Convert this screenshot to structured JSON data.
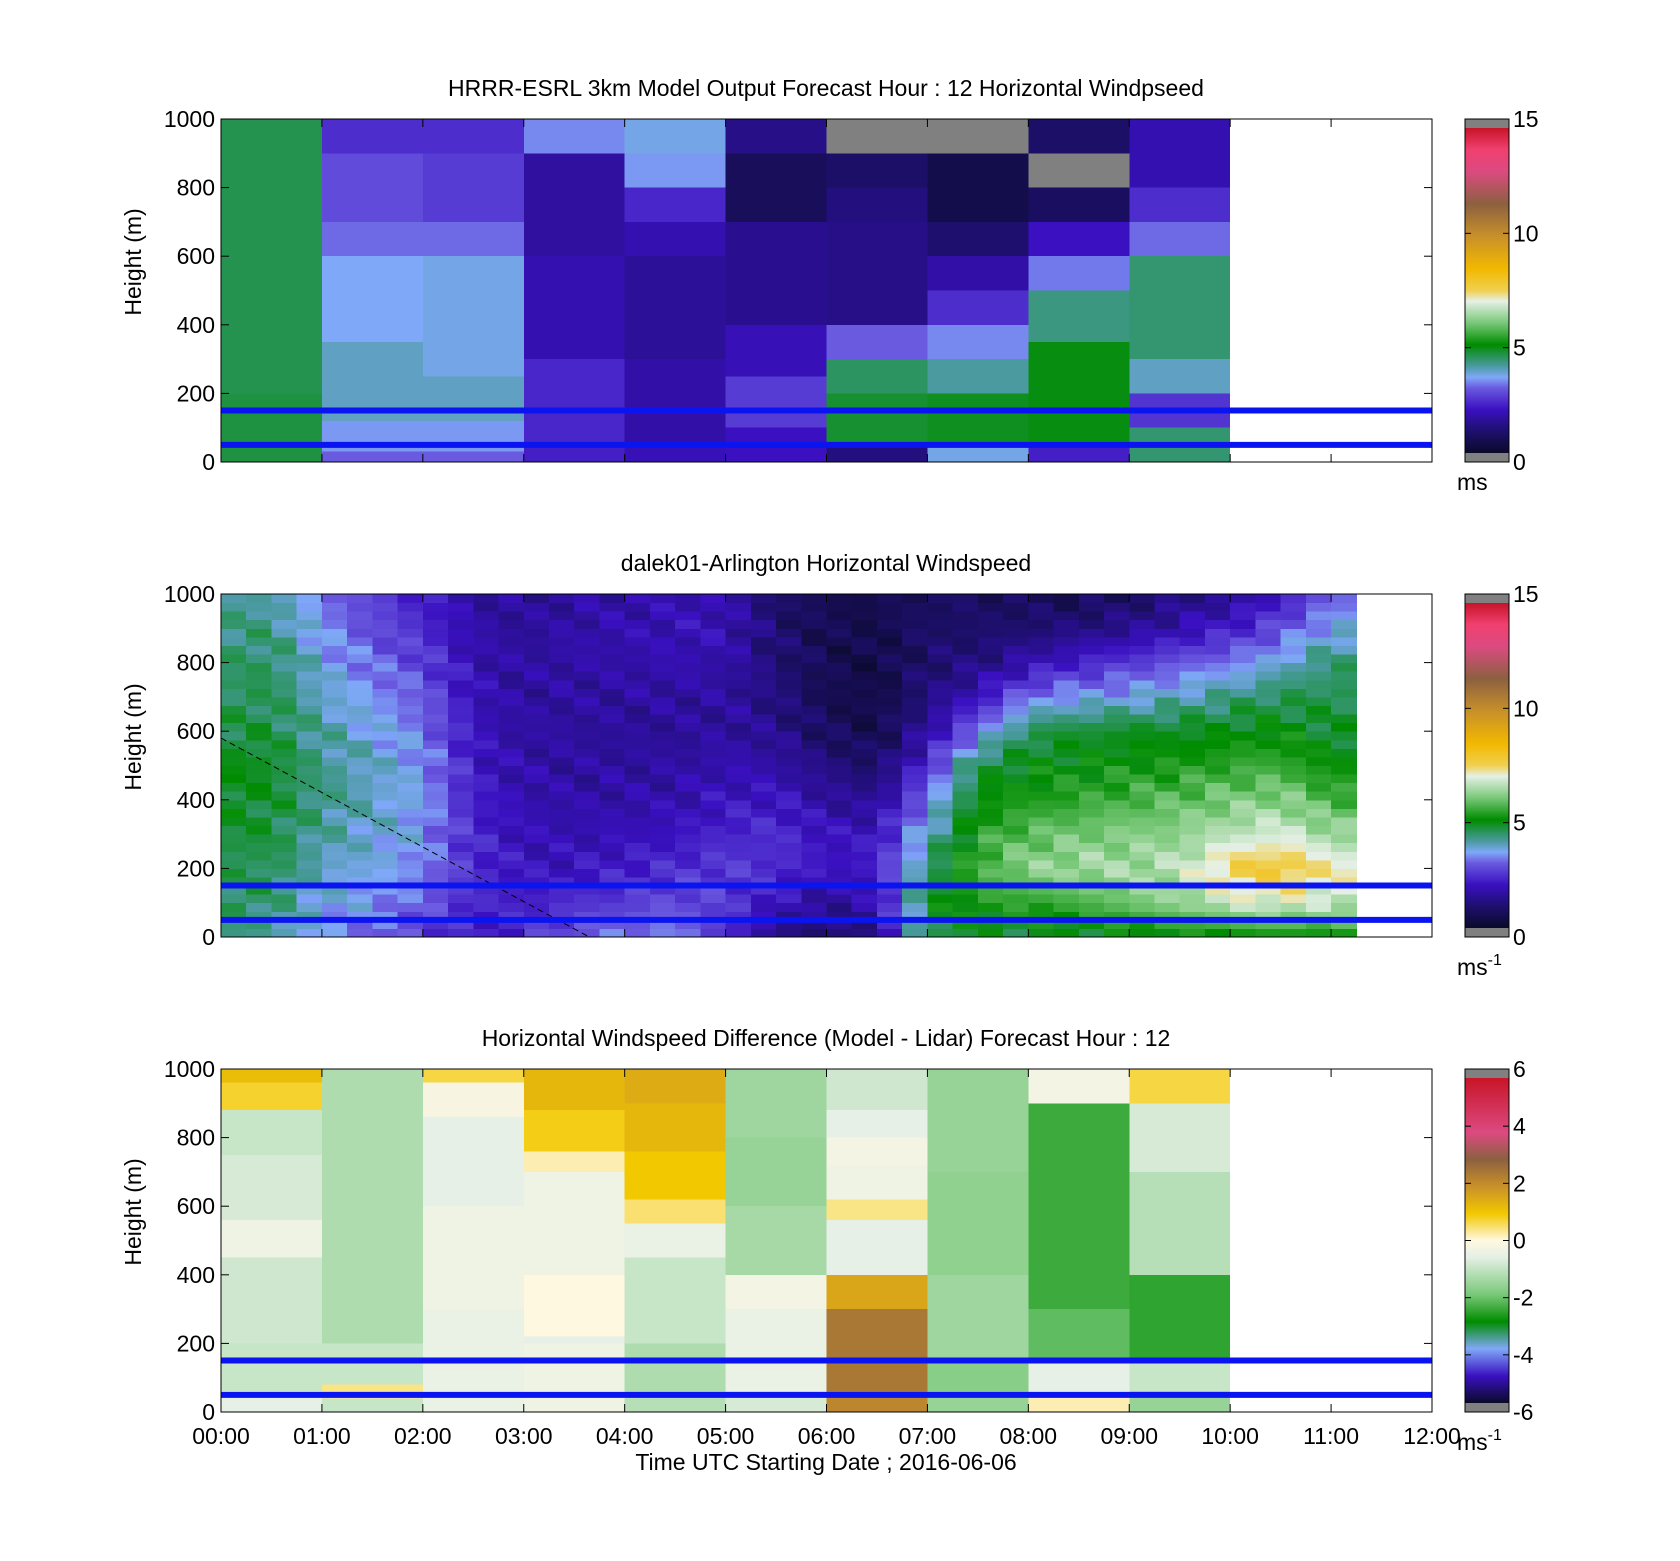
{
  "chart_data": [
    {
      "type": "heatmap",
      "title": "HRRR-ESRL 3km Model Output   Forecast Hour : 12 Horizontal Windpseed",
      "ylabel": "Height (m)",
      "xlabel": "",
      "ylim": [
        0,
        1000
      ],
      "y_ticks": [
        "0",
        "200",
        "400",
        "600",
        "800",
        "1000"
      ],
      "xlim_hours": [
        0,
        12
      ],
      "data_end_hour": 10,
      "grid": false,
      "colorbar": {
        "min": 0,
        "max": 15,
        "ticks": [
          "0",
          "5",
          "10",
          "15"
        ],
        "unit": "ms",
        "unit_sup": "",
        "scale": "speed"
      },
      "reference_lines_m": [
        50,
        150
      ],
      "columns": [
        [
          [
            0,
            200,
            4.6
          ],
          [
            200,
            1000,
            4.5
          ]
        ],
        [
          [
            0,
            30,
            3.0
          ],
          [
            30,
            120,
            3.4
          ],
          [
            120,
            350,
            3.8
          ],
          [
            350,
            600,
            3.5
          ],
          [
            600,
            700,
            3.1
          ],
          [
            700,
            900,
            2.8
          ],
          [
            900,
            1000,
            2.4
          ]
        ],
        [
          [
            0,
            30,
            3.0
          ],
          [
            30,
            120,
            3.4
          ],
          [
            120,
            250,
            3.8
          ],
          [
            250,
            600,
            3.6
          ],
          [
            600,
            700,
            3.1
          ],
          [
            700,
            900,
            2.6
          ],
          [
            900,
            1000,
            2.4
          ]
        ],
        [
          [
            0,
            50,
            2.2
          ],
          [
            50,
            300,
            2.3
          ],
          [
            300,
            600,
            1.8
          ],
          [
            600,
            900,
            1.6
          ],
          [
            900,
            1000,
            3.3
          ]
        ],
        [
          [
            0,
            50,
            1.9
          ],
          [
            50,
            300,
            1.7
          ],
          [
            300,
            600,
            1.5
          ],
          [
            600,
            700,
            1.8
          ],
          [
            700,
            800,
            2.3
          ],
          [
            800,
            900,
            3.4
          ],
          [
            900,
            1000,
            3.6
          ]
        ],
        [
          [
            0,
            100,
            2.0
          ],
          [
            100,
            250,
            2.6
          ],
          [
            250,
            400,
            1.9
          ],
          [
            400,
            700,
            1.4
          ],
          [
            700,
            900,
            0.7
          ],
          [
            900,
            1000,
            1.3
          ]
        ],
        [
          [
            0,
            50,
            1.2
          ],
          [
            50,
            200,
            4.7
          ],
          [
            200,
            300,
            4.4
          ],
          [
            300,
            400,
            3.0
          ],
          [
            400,
            700,
            1.3
          ],
          [
            700,
            800,
            1.2
          ],
          [
            800,
            900,
            0.9
          ],
          [
            900,
            1000,
            16
          ]
        ],
        [
          [
            0,
            50,
            3.6
          ],
          [
            50,
            200,
            4.8
          ],
          [
            200,
            300,
            4.0
          ],
          [
            300,
            400,
            3.3
          ],
          [
            400,
            500,
            2.4
          ],
          [
            500,
            600,
            1.7
          ],
          [
            600,
            700,
            1.0
          ],
          [
            700,
            900,
            0.5
          ],
          [
            900,
            1000,
            16
          ]
        ],
        [
          [
            0,
            50,
            2.2
          ],
          [
            50,
            350,
            4.9
          ],
          [
            350,
            500,
            4.2
          ],
          [
            500,
            600,
            3.2
          ],
          [
            600,
            700,
            2.0
          ],
          [
            700,
            800,
            0.8
          ],
          [
            800,
            900,
            16
          ],
          [
            900,
            1000,
            0.9
          ]
        ],
        [
          [
            0,
            100,
            4.3
          ],
          [
            100,
            200,
            2.5
          ],
          [
            200,
            300,
            3.8
          ],
          [
            300,
            600,
            4.3
          ],
          [
            600,
            700,
            3.1
          ],
          [
            700,
            800,
            2.4
          ],
          [
            800,
            1000,
            1.8
          ]
        ]
      ]
    },
    {
      "type": "heatmap",
      "title": "dalek01-Arlington  Horizontal Windspeed",
      "ylabel": "Height (m)",
      "xlabel": "",
      "ylim": [
        0,
        1000
      ],
      "y_ticks": [
        "0",
        "200",
        "400",
        "600",
        "800",
        "1000"
      ],
      "xlim_hours": [
        0,
        12
      ],
      "data_end_hour": 11.1,
      "grid": false,
      "colorbar": {
        "min": 0,
        "max": 15,
        "ticks": [
          "0",
          "5",
          "10",
          "15"
        ],
        "unit": "ms",
        "unit_sup": "-1",
        "scale": "speed"
      },
      "reference_lines_m": [
        50,
        150
      ],
      "dashed_line": {
        "x_hours": [
          0,
          3.65
        ],
        "y_m": [
          580,
          0
        ]
      },
      "profiles": [
        {
          "t": 0.0,
          "v": [
            4.2,
            4.5,
            4.4,
            4.7,
            4.8,
            4.9,
            4.5,
            4.4,
            4.3,
            4.2,
            4.0
          ]
        },
        {
          "t": 0.5,
          "v": [
            4.0,
            4.3,
            4.5,
            4.6,
            4.7,
            4.8,
            4.6,
            4.5,
            4.4,
            4.2,
            4.0
          ]
        },
        {
          "t": 1.0,
          "v": [
            3.4,
            3.6,
            3.8,
            4.0,
            4.2,
            4.1,
            4.0,
            3.8,
            3.6,
            3.4,
            3.2
          ]
        },
        {
          "t": 1.5,
          "v": [
            3.0,
            3.4,
            3.6,
            3.7,
            3.8,
            3.8,
            3.6,
            3.4,
            3.1,
            2.8,
            2.6
          ]
        },
        {
          "t": 2.0,
          "v": [
            2.6,
            3.0,
            3.3,
            3.4,
            3.5,
            3.4,
            3.2,
            3.0,
            2.7,
            2.4,
            2.2
          ]
        },
        {
          "t": 2.5,
          "v": [
            2.0,
            2.3,
            2.4,
            2.3,
            2.2,
            2.1,
            2.0,
            1.9,
            1.8,
            1.7,
            1.6
          ]
        },
        {
          "t": 3.0,
          "v": [
            2.4,
            2.2,
            2.0,
            1.9,
            1.8,
            1.7,
            1.6,
            1.6,
            1.6,
            1.5,
            1.5
          ]
        },
        {
          "t": 3.5,
          "v": [
            3.0,
            2.4,
            2.0,
            1.8,
            1.7,
            1.6,
            1.6,
            1.6,
            1.7,
            1.7,
            1.6
          ]
        },
        {
          "t": 4.0,
          "v": [
            3.2,
            2.6,
            2.2,
            1.9,
            1.7,
            1.6,
            1.5,
            1.6,
            1.7,
            1.8,
            1.7
          ]
        },
        {
          "t": 4.5,
          "v": [
            3.3,
            2.8,
            2.4,
            2.0,
            1.8,
            1.6,
            1.5,
            1.6,
            1.8,
            1.9,
            1.8
          ]
        },
        {
          "t": 5.0,
          "v": [
            2.4,
            2.6,
            2.6,
            2.3,
            2.0,
            1.8,
            1.6,
            1.6,
            1.7,
            1.9,
            1.8
          ]
        },
        {
          "t": 5.5,
          "v": [
            1.2,
            2.0,
            2.4,
            2.4,
            2.1,
            1.7,
            1.4,
            1.2,
            1.1,
            1.0,
            0.9
          ]
        },
        {
          "t": 6.0,
          "v": [
            0.9,
            1.5,
            2.0,
            2.0,
            1.6,
            1.2,
            0.8,
            0.6,
            0.6,
            0.6,
            0.6
          ]
        },
        {
          "t": 6.5,
          "v": [
            1.2,
            1.8,
            2.2,
            2.0,
            1.4,
            0.9,
            0.5,
            0.4,
            0.4,
            0.5,
            0.5
          ]
        },
        {
          "t": 7.0,
          "v": [
            4.6,
            4.8,
            4.3,
            3.8,
            3.2,
            2.4,
            1.6,
            1.2,
            1.0,
            0.9,
            0.8
          ]
        },
        {
          "t": 7.5,
          "v": [
            4.7,
            5.2,
            5.6,
            5.3,
            5.0,
            4.6,
            3.2,
            2.0,
            1.2,
            0.9,
            0.8
          ]
        },
        {
          "t": 8.0,
          "v": [
            4.6,
            5.4,
            6.2,
            5.8,
            5.2,
            4.9,
            4.5,
            3.2,
            1.8,
            1.0,
            0.7
          ]
        },
        {
          "t": 8.5,
          "v": [
            4.7,
            5.5,
            6.4,
            6.0,
            5.4,
            5.0,
            4.7,
            3.5,
            2.2,
            1.2,
            0.6
          ]
        },
        {
          "t": 9.0,
          "v": [
            4.8,
            6.0,
            6.4,
            6.1,
            5.6,
            5.1,
            4.8,
            3.6,
            2.6,
            1.4,
            0.8
          ]
        },
        {
          "t": 9.5,
          "v": [
            4.9,
            6.2,
            6.6,
            6.2,
            5.8,
            5.2,
            4.8,
            3.9,
            2.9,
            1.8,
            1.2
          ]
        },
        {
          "t": 10.0,
          "v": [
            4.9,
            6.8,
            7.6,
            6.6,
            6.0,
            5.4,
            4.9,
            4.2,
            3.2,
            2.2,
            1.4
          ]
        },
        {
          "t": 10.5,
          "v": [
            5.0,
            6.9,
            7.9,
            6.9,
            6.2,
            5.5,
            5.0,
            4.5,
            3.7,
            2.8,
            2.0
          ]
        },
        {
          "t": 11.0,
          "v": [
            5.0,
            6.7,
            7.2,
            6.3,
            5.6,
            5.0,
            4.7,
            4.5,
            4.3,
            3.6,
            3.0
          ]
        }
      ]
    },
    {
      "type": "heatmap",
      "title": "Horizontal Windspeed Difference (Model - Lidar) Forecast Hour : 12",
      "ylabel": "Height (m)",
      "xlabel": "Time UTC  Starting Date ; 2016-06-06",
      "ylim": [
        0,
        1000
      ],
      "y_ticks": [
        "0",
        "200",
        "400",
        "600",
        "800",
        "1000"
      ],
      "x_ticks": [
        "00:00",
        "01:00",
        "02:00",
        "03:00",
        "04:00",
        "05:00",
        "06:00",
        "07:00",
        "08:00",
        "09:00",
        "10:00",
        "11:00",
        "12:00"
      ],
      "xlim_hours": [
        0,
        12
      ],
      "data_end_hour": 10,
      "grid": false,
      "colorbar": {
        "min": -6,
        "max": 6,
        "ticks": [
          "-6",
          "-4",
          "-2",
          "0",
          "2",
          "4",
          "6"
        ],
        "unit": "ms",
        "unit_sup": "-1",
        "scale": "diff"
      },
      "reference_lines_m": [
        50,
        150
      ],
      "columns": [
        [
          [
            0,
            60,
            -0.6
          ],
          [
            60,
            200,
            -1.0
          ],
          [
            200,
            450,
            -0.9
          ],
          [
            450,
            560,
            -0.4
          ],
          [
            560,
            750,
            -0.8
          ],
          [
            750,
            880,
            -1.0
          ],
          [
            880,
            960,
            0.8
          ],
          [
            960,
            1000,
            1.2
          ]
        ],
        [
          [
            0,
            40,
            -1.0
          ],
          [
            40,
            80,
            0.4
          ],
          [
            80,
            200,
            -1.0
          ],
          [
            200,
            1000,
            -1.3
          ]
        ],
        [
          [
            0,
            40,
            -0.5
          ],
          [
            40,
            300,
            -0.5
          ],
          [
            300,
            600,
            -0.4
          ],
          [
            600,
            860,
            -0.6
          ],
          [
            860,
            960,
            -0.2
          ],
          [
            960,
            1000,
            0.7
          ]
        ],
        [
          [
            0,
            200,
            -0.4
          ],
          [
            200,
            220,
            -0.6
          ],
          [
            220,
            400,
            0.0
          ],
          [
            400,
            700,
            -0.4
          ],
          [
            700,
            760,
            0.2
          ],
          [
            760,
            880,
            0.9
          ],
          [
            880,
            1000,
            1.3
          ]
        ],
        [
          [
            0,
            60,
            -1.2
          ],
          [
            60,
            200,
            -1.3
          ],
          [
            200,
            450,
            -1.0
          ],
          [
            450,
            550,
            -0.5
          ],
          [
            550,
            620,
            0.5
          ],
          [
            620,
            760,
            1.0
          ],
          [
            760,
            900,
            1.3
          ],
          [
            900,
            1000,
            1.5
          ]
        ],
        [
          [
            0,
            60,
            -0.8
          ],
          [
            60,
            300,
            -0.5
          ],
          [
            300,
            400,
            -0.3
          ],
          [
            400,
            600,
            -1.4
          ],
          [
            600,
            800,
            -1.6
          ],
          [
            800,
            1000,
            -1.5
          ]
        ],
        [
          [
            0,
            60,
            2.2
          ],
          [
            60,
            300,
            2.5
          ],
          [
            300,
            400,
            1.6
          ],
          [
            400,
            560,
            -0.6
          ],
          [
            560,
            620,
            0.4
          ],
          [
            620,
            720,
            -0.4
          ],
          [
            720,
            800,
            -0.3
          ],
          [
            800,
            880,
            -0.6
          ],
          [
            880,
            1000,
            -0.9
          ]
        ],
        [
          [
            0,
            60,
            -1.6
          ],
          [
            60,
            150,
            -1.8
          ],
          [
            150,
            400,
            -1.5
          ],
          [
            400,
            700,
            -1.7
          ],
          [
            700,
            1000,
            -1.6
          ]
        ],
        [
          [
            0,
            60,
            0.2
          ],
          [
            60,
            150,
            -0.6
          ],
          [
            150,
            300,
            -2.2
          ],
          [
            300,
            900,
            -2.5
          ],
          [
            900,
            1000,
            -0.3
          ]
        ],
        [
          [
            0,
            60,
            -1.6
          ],
          [
            60,
            150,
            -1.0
          ],
          [
            150,
            400,
            -2.6
          ],
          [
            400,
            700,
            -1.2
          ],
          [
            700,
            900,
            -0.8
          ],
          [
            900,
            1000,
            0.7
          ]
        ]
      ]
    }
  ]
}
